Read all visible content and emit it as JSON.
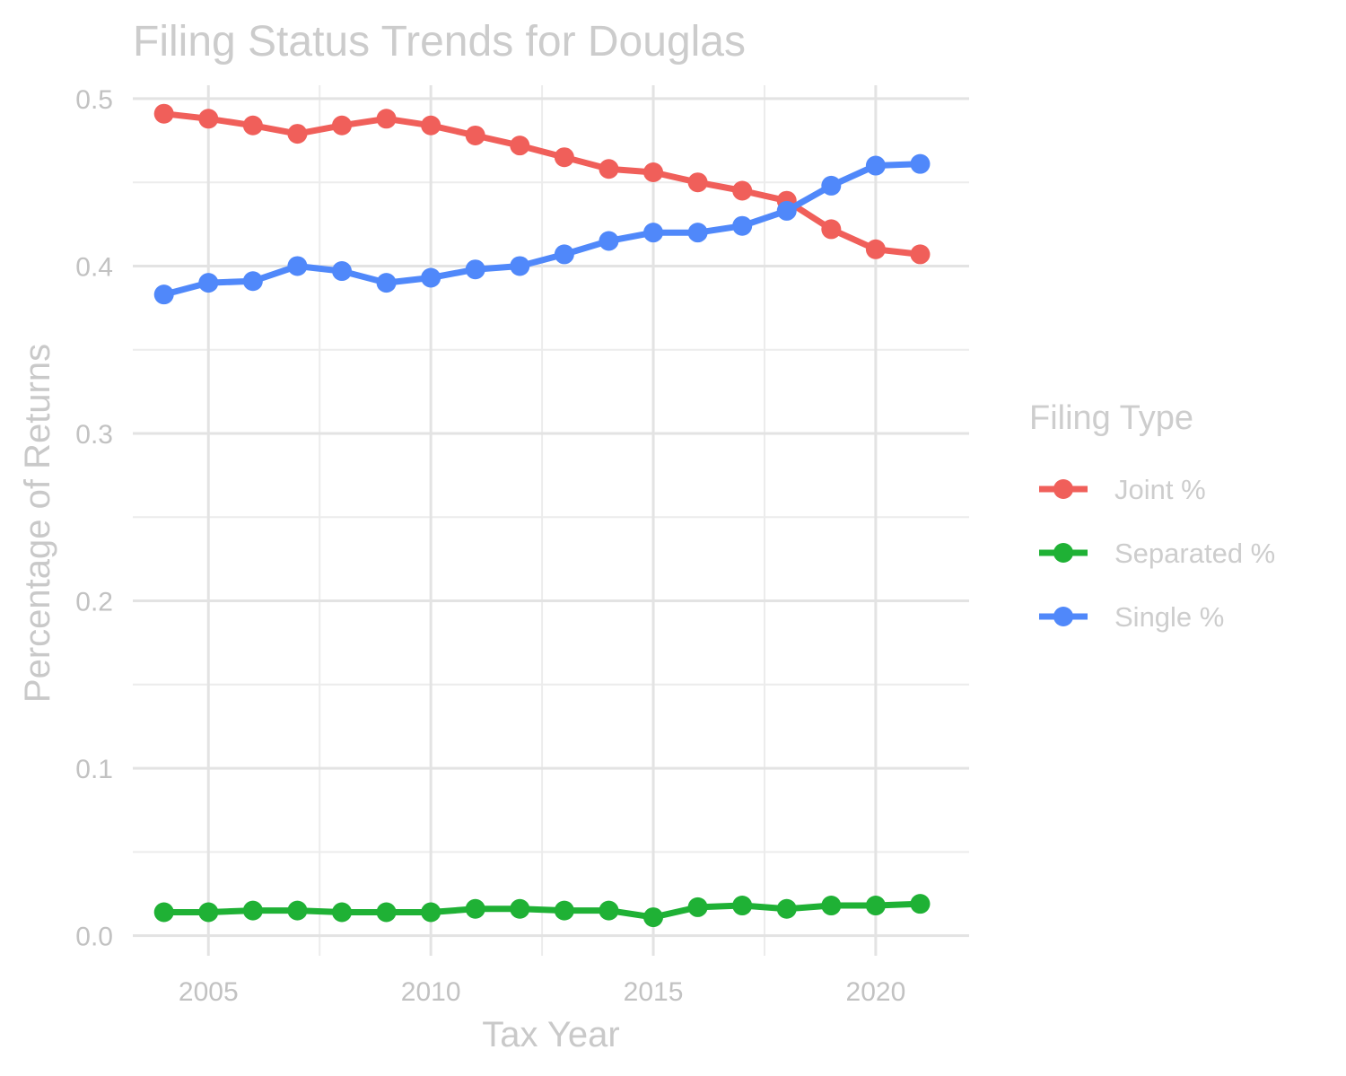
{
  "chart_data": {
    "type": "line",
    "title": "Filing Status Trends for Douglas",
    "xlabel": "Tax Year",
    "ylabel": "Percentage of Returns",
    "xlim": [
      2003.3,
      2022.1
    ],
    "ylim": [
      -0.012,
      0.508
    ],
    "x_ticks": [
      2005,
      2010,
      2015,
      2020
    ],
    "x_tick_labels": [
      "2005",
      "2010",
      "2015",
      "2020"
    ],
    "x_minor_ticks": [
      2007.5,
      2012.5,
      2017.5
    ],
    "y_ticks": [
      0.0,
      0.1,
      0.2,
      0.3,
      0.4,
      0.5
    ],
    "y_tick_labels": [
      "0.0",
      "0.1",
      "0.2",
      "0.3",
      "0.4",
      "0.5"
    ],
    "y_minor_ticks": [
      0.05,
      0.15,
      0.25,
      0.35,
      0.45
    ],
    "grid": true,
    "legend": {
      "title": "Filing Type",
      "position": "right"
    },
    "x": [
      2004,
      2005,
      2006,
      2007,
      2008,
      2009,
      2010,
      2011,
      2012,
      2013,
      2014,
      2015,
      2016,
      2017,
      2018,
      2019,
      2020,
      2021
    ],
    "series": [
      {
        "name": "Joint %",
        "color": "#f05f5a",
        "values": [
          0.491,
          0.488,
          0.484,
          0.479,
          0.484,
          0.488,
          0.484,
          0.478,
          0.472,
          0.465,
          0.458,
          0.456,
          0.45,
          0.445,
          0.439,
          0.422,
          0.41,
          0.407
        ]
      },
      {
        "name": "Separated %",
        "color": "#1fb135",
        "values": [
          0.014,
          0.014,
          0.015,
          0.015,
          0.014,
          0.014,
          0.014,
          0.016,
          0.016,
          0.015,
          0.015,
          0.011,
          0.017,
          0.018,
          0.016,
          0.018,
          0.018,
          0.019
        ]
      },
      {
        "name": "Single %",
        "color": "#5088fa",
        "values": [
          0.383,
          0.39,
          0.391,
          0.4,
          0.397,
          0.39,
          0.393,
          0.398,
          0.4,
          0.407,
          0.415,
          0.42,
          0.42,
          0.424,
          0.433,
          0.448,
          0.46,
          0.461
        ]
      }
    ]
  }
}
